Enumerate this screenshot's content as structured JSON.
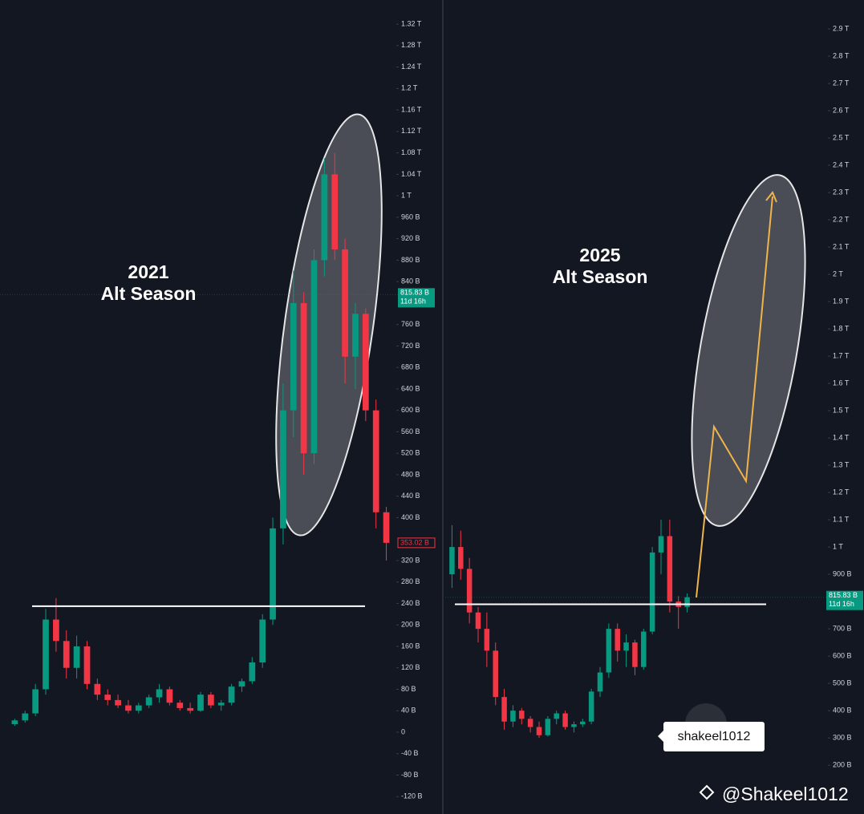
{
  "chart_data": [
    {
      "type": "candlestick",
      "title": "2021",
      "subtitle": "Alt Season",
      "up_color": "#089981",
      "down_color": "#f23645",
      "open": [
        15,
        22,
        35,
        80,
        210,
        170,
        120,
        160,
        90,
        70,
        60,
        50,
        40,
        50,
        65,
        80,
        55,
        45,
        40,
        70,
        50,
        55,
        85,
        95,
        130,
        210,
        380,
        600,
        800,
        520,
        880,
        1040,
        900,
        700,
        780,
        600,
        410
      ],
      "high": [
        25,
        40,
        90,
        230,
        250,
        190,
        180,
        170,
        100,
        80,
        70,
        60,
        55,
        70,
        90,
        85,
        60,
        55,
        75,
        75,
        60,
        90,
        100,
        140,
        220,
        400,
        650,
        860,
        820,
        900,
        1070,
        1080,
        920,
        800,
        790,
        620,
        420
      ],
      "low": [
        12,
        18,
        30,
        70,
        150,
        100,
        100,
        80,
        60,
        50,
        45,
        35,
        35,
        45,
        55,
        50,
        40,
        35,
        38,
        45,
        40,
        50,
        75,
        90,
        120,
        200,
        350,
        550,
        480,
        500,
        850,
        880,
        650,
        640,
        580,
        380,
        320
      ],
      "close": [
        22,
        35,
        80,
        210,
        170,
        120,
        160,
        90,
        70,
        60,
        50,
        40,
        50,
        65,
        80,
        55,
        45,
        40,
        70,
        50,
        55,
        85,
        95,
        130,
        210,
        380,
        600,
        800,
        520,
        880,
        1040,
        900,
        700,
        780,
        600,
        410,
        353.02
      ],
      "ylim": [
        -152.5,
        1365
      ],
      "yticks": [
        {
          "value": -120,
          "label": "-120 B"
        },
        {
          "value": -80,
          "label": "-80 B"
        },
        {
          "value": -40,
          "label": "-40 B"
        },
        0,
        {
          "value": 40,
          "label": "40 B"
        },
        {
          "value": 80,
          "label": "80 B"
        },
        {
          "value": 120,
          "label": "120 B"
        },
        {
          "value": 160,
          "label": "160 B"
        },
        {
          "value": 200,
          "label": "200 B"
        },
        {
          "value": 240,
          "label": "240 B"
        },
        {
          "value": 280,
          "label": "280 B"
        },
        {
          "value": 320,
          "label": "320 B"
        },
        {
          "value": 400,
          "label": "400 B"
        },
        {
          "value": 440,
          "label": "440 B"
        },
        {
          "value": 480,
          "label": "480 B"
        },
        {
          "value": 520,
          "label": "520 B"
        },
        {
          "value": 560,
          "label": "560 B"
        },
        {
          "value": 600,
          "label": "600 B"
        },
        {
          "value": 640,
          "label": "640 B"
        },
        {
          "value": 680,
          "label": "680 B"
        },
        {
          "value": 720,
          "label": "720 B"
        },
        {
          "value": 760,
          "label": "760 B"
        },
        {
          "value": 840,
          "label": "840 B"
        },
        {
          "value": 880,
          "label": "880 B"
        },
        {
          "value": 920,
          "label": "920 B"
        },
        {
          "value": 960,
          "label": "960 B"
        },
        {
          "value": 1000,
          "label": "1 T"
        },
        {
          "value": 1040,
          "label": "1.04 T"
        },
        {
          "value": 1080,
          "label": "1.08 T"
        },
        {
          "value": 1120,
          "label": "1.12 T"
        },
        {
          "value": 1160,
          "label": "1.16 T"
        },
        {
          "value": 1200,
          "label": "1.2 T"
        },
        {
          "value": 1240,
          "label": "1.24 T"
        },
        {
          "value": 1280,
          "label": "1.28 T"
        },
        {
          "value": 1320,
          "label": "1.32 T"
        }
      ],
      "support_level": 235,
      "price_line": {
        "value": 815.83,
        "label": "815.83 B"
      },
      "countdown": "11d 16h",
      "close_label": {
        "value": 353.02,
        "label": "353.02 B"
      }
    },
    {
      "type": "candlestick",
      "title": "2025",
      "subtitle": "Alt Season",
      "up_color": "#089981",
      "down_color": "#f23645",
      "open": [
        900,
        1000,
        920,
        760,
        700,
        620,
        450,
        360,
        400,
        370,
        340,
        310,
        370,
        390,
        340,
        350,
        360,
        470,
        540,
        700,
        620,
        650,
        560,
        690,
        980,
        1040,
        800,
        780
      ],
      "high": [
        1080,
        1060,
        960,
        780,
        760,
        650,
        480,
        420,
        410,
        380,
        360,
        380,
        400,
        400,
        360,
        370,
        480,
        560,
        720,
        720,
        680,
        660,
        700,
        1000,
        1100,
        1100,
        820,
        830
      ],
      "low": [
        850,
        880,
        720,
        650,
        560,
        420,
        330,
        340,
        350,
        320,
        300,
        305,
        350,
        330,
        320,
        340,
        350,
        450,
        520,
        580,
        560,
        530,
        550,
        680,
        900,
        760,
        700,
        760
      ],
      "close": [
        1000,
        920,
        760,
        700,
        620,
        450,
        360,
        400,
        370,
        340,
        310,
        370,
        390,
        340,
        350,
        360,
        470,
        540,
        700,
        620,
        650,
        560,
        690,
        980,
        1040,
        800,
        780,
        815.83
      ],
      "ylim": [
        21,
        3006
      ],
      "yticks": [
        {
          "value": 200,
          "label": "200 B"
        },
        {
          "value": 300,
          "label": "300 B"
        },
        {
          "value": 400,
          "label": "400 B"
        },
        {
          "value": 500,
          "label": "500 B"
        },
        {
          "value": 600,
          "label": "600 B"
        },
        {
          "value": 700,
          "label": "700 B"
        },
        {
          "value": 900,
          "label": "900 B"
        },
        {
          "value": 1000,
          "label": "1 T"
        },
        {
          "value": 1100,
          "label": "1.1 T"
        },
        {
          "value": 1200,
          "label": "1.2 T"
        },
        {
          "value": 1300,
          "label": "1.3 T"
        },
        {
          "value": 1400,
          "label": "1.4 T"
        },
        {
          "value": 1500,
          "label": "1.5 T"
        },
        {
          "value": 1600,
          "label": "1.6 T"
        },
        {
          "value": 1700,
          "label": "1.7 T"
        },
        {
          "value": 1800,
          "label": "1.8 T"
        },
        {
          "value": 1900,
          "label": "1.9 T"
        },
        {
          "value": 2000,
          "label": "2 T"
        },
        {
          "value": 2100,
          "label": "2.1 T"
        },
        {
          "value": 2200,
          "label": "2.2 T"
        },
        {
          "value": 2300,
          "label": "2.3 T"
        },
        {
          "value": 2400,
          "label": "2.4 T"
        },
        {
          "value": 2500,
          "label": "2.5 T"
        },
        {
          "value": 2600,
          "label": "2.6 T"
        },
        {
          "value": 2700,
          "label": "2.7 T"
        },
        {
          "value": 2800,
          "label": "2.8 T"
        },
        {
          "value": 2900,
          "label": "2.9 T"
        }
      ],
      "support_level": 790,
      "price_line": {
        "value": 815.83,
        "label": "815.83 B"
      },
      "countdown": "11d 16h"
    }
  ],
  "overlay": {
    "tag": "shakeel1012",
    "handle": "@Shakeel1012"
  }
}
